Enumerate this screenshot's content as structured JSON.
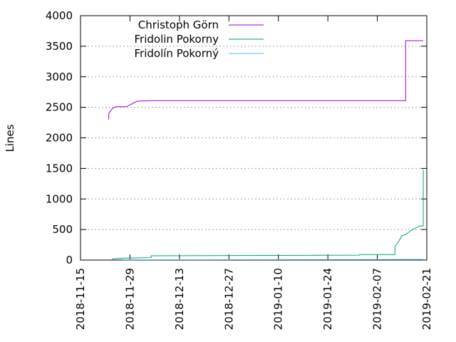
{
  "chart_data": {
    "type": "line",
    "ylabel": "Lines",
    "xlabel": "",
    "x_axis_type": "date",
    "xlim": [
      "2018-11-15",
      "2019-02-21"
    ],
    "ylim": [
      0,
      4000
    ],
    "x_ticks": [
      "2018-11-15",
      "2018-11-29",
      "2018-12-13",
      "2018-12-27",
      "2019-01-10",
      "2019-01-24",
      "2019-02-07",
      "2019-02-21"
    ],
    "y_ticks": [
      0,
      500,
      1000,
      1500,
      2000,
      2500,
      3000,
      3500,
      4000
    ],
    "grid": "horizontal dotted",
    "legend_position": "top-left",
    "series": [
      {
        "name": "Christoph Görn",
        "color": "#9400d3",
        "points": [
          [
            "2018-11-23",
            2300
          ],
          [
            "2018-11-23",
            2400
          ],
          [
            "2018-11-24",
            2480
          ],
          [
            "2018-11-25",
            2510
          ],
          [
            "2018-11-28",
            2510
          ],
          [
            "2018-12-01",
            2600
          ],
          [
            "2018-12-05",
            2610
          ],
          [
            "2019-02-15",
            2610
          ],
          [
            "2019-02-15",
            3590
          ],
          [
            "2019-02-20",
            3590
          ]
        ]
      },
      {
        "name": "Fridolin Pokorny",
        "color": "#009e73",
        "points": [
          [
            "2018-11-24",
            0
          ],
          [
            "2018-11-24",
            20
          ],
          [
            "2018-11-27",
            30
          ],
          [
            "2018-12-05",
            40
          ],
          [
            "2018-12-05",
            70
          ],
          [
            "2019-02-02",
            80
          ],
          [
            "2019-02-02",
            90
          ],
          [
            "2019-02-12",
            90
          ],
          [
            "2019-02-12",
            220
          ],
          [
            "2019-02-13",
            300
          ],
          [
            "2019-02-14",
            400
          ],
          [
            "2019-02-15",
            420
          ],
          [
            "2019-02-17",
            500
          ],
          [
            "2019-02-19",
            560
          ],
          [
            "2019-02-20",
            560
          ],
          [
            "2019-02-20",
            1150
          ],
          [
            "2019-02-20",
            1480
          ]
        ]
      },
      {
        "name": "Fridolín Pokorný",
        "color": "#56b4e9",
        "points": [
          [
            "2018-11-27",
            0
          ],
          [
            "2018-11-27",
            5
          ],
          [
            "2019-02-20",
            10
          ]
        ]
      }
    ]
  }
}
